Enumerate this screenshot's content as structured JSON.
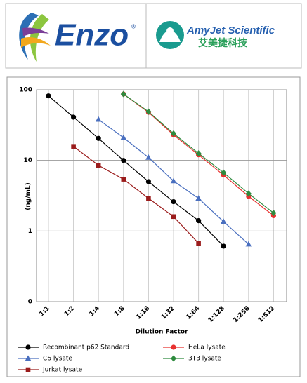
{
  "header": {
    "left": {
      "logo": "Enzo",
      "mark": "®"
    },
    "right": {
      "name": "AmyJet Scientific",
      "chinese": "艾美捷科技"
    }
  },
  "chart_data": {
    "type": "line",
    "x_label": "Dilution Factor",
    "y_label": "(ng/mL)",
    "categories": [
      "1:1",
      "1:2",
      "1:4",
      "1:8",
      "1:16",
      "1:32",
      "1:64",
      "1:128",
      "1:256",
      "1:512"
    ],
    "ylim": [
      0.1,
      100
    ],
    "yscale": "log",
    "yticks": [
      {
        "value": 0.1,
        "label": "0"
      },
      1,
      10,
      100
    ],
    "grid": true,
    "legend": "bottom",
    "series": [
      {
        "name": "Recombinant p62 Standard",
        "color": "#000000",
        "marker": "circle",
        "values": [
          82,
          41,
          20.5,
          10,
          5,
          2.6,
          1.4,
          0.61,
          null,
          null
        ]
      },
      {
        "name": "HeLa lysate",
        "color": "#e8312f",
        "marker": "circle",
        "values": [
          null,
          null,
          null,
          87,
          48,
          23,
          12,
          6.2,
          3.1,
          1.65
        ]
      },
      {
        "name": "C6 lysate",
        "color": "#4a6fbf",
        "marker": "triangle",
        "values": [
          null,
          null,
          38,
          21,
          11,
          5.1,
          2.9,
          1.36,
          0.65,
          null
        ]
      },
      {
        "name": "3T3 lysate",
        "color": "#2e8b3e",
        "marker": "diamond",
        "values": [
          null,
          null,
          null,
          87,
          49,
          24,
          12.6,
          6.7,
          3.4,
          1.8
        ]
      },
      {
        "name": "Jurkat lysate",
        "color": "#9b1c1c",
        "marker": "square",
        "values": [
          null,
          15.8,
          8.5,
          5.4,
          2.9,
          1.6,
          0.67,
          null,
          null,
          null
        ]
      }
    ]
  }
}
